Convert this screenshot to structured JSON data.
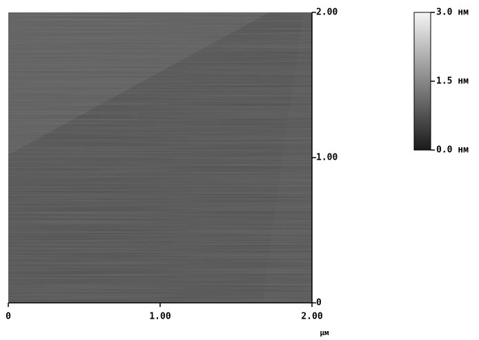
{
  "chart_data": {
    "type": "image",
    "xlabel": "μм",
    "xlim": [
      0,
      2
    ],
    "ylim": [
      0,
      2
    ],
    "xticks": [
      0,
      {
        "value": 1,
        "label": "1.00"
      },
      {
        "value": 2,
        "label": "2.00"
      }
    ],
    "yticks": [
      0,
      {
        "value": 1,
        "label": "1.00"
      },
      {
        "value": 2,
        "label": "2.00"
      }
    ],
    "colorbar": {
      "clim": [
        0,
        3
      ],
      "colors": [
        "#1a1a1a",
        "#f5f5f5"
      ],
      "ticks": [
        {
          "value": 3,
          "label": "3.0 нм"
        },
        {
          "value": 1.5,
          "label": "1.5 нм"
        },
        {
          "value": 0,
          "label": "0.0 нм"
        }
      ]
    }
  }
}
